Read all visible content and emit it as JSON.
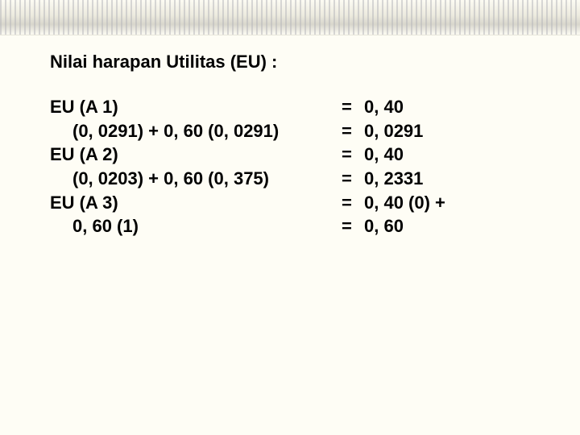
{
  "title": "Nilai harapan Utilitas (EU) :",
  "rows": [
    {
      "left": "EU (A 1)",
      "eq": "=",
      "right": "0, 40",
      "indent": false
    },
    {
      "left": "(0, 0291) + 0, 60 (0, 0291)",
      "eq": "=",
      "right": "0, 0291",
      "indent": true
    },
    {
      "left": "EU (A 2)",
      "eq": "=",
      "right": "0, 40",
      "indent": false
    },
    {
      "left": "(0, 0203) + 0, 60 (0, 375)",
      "eq": "=",
      "right": "0, 2331",
      "indent": true
    },
    {
      "left": "EU (A 3)",
      "eq": "=",
      "right": "0, 40 (0)  +",
      "indent": false
    },
    {
      "left": "0, 60 (1)",
      "eq": "=",
      "right": "0, 60",
      "indent": true
    }
  ],
  "colors": {
    "background": "#fefdf5",
    "text": "#000000"
  },
  "font": {
    "family": "Arial",
    "size_pt": 16,
    "weight": "bold"
  }
}
